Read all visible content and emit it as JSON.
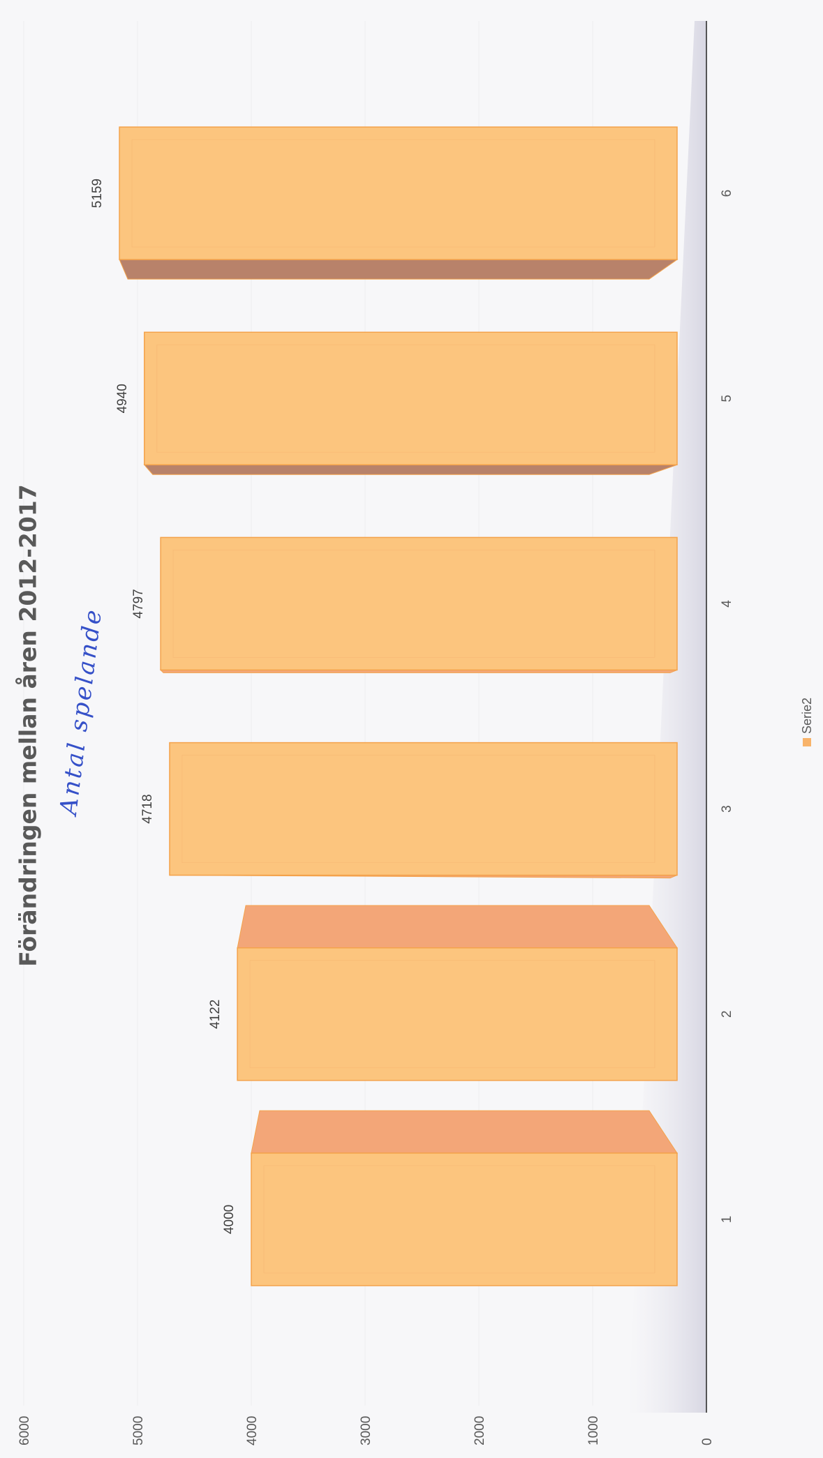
{
  "chart_data": {
    "type": "bar",
    "title": "Förändringen mellan åren 2012-2017",
    "annotation": "Antal spelande",
    "categories": [
      "1",
      "2",
      "3",
      "4",
      "5",
      "6"
    ],
    "series": [
      {
        "name": "Serie2",
        "values": [
          4000,
          4122,
          4718,
          4797,
          4940,
          5159
        ]
      }
    ],
    "data_labels": [
      "4000",
      "4122",
      "4718",
      "4797",
      "4940",
      "5159"
    ],
    "ylim": [
      0,
      6000
    ],
    "yticks": [
      "0",
      "1000",
      "2000",
      "3000",
      "4000",
      "5000",
      "6000"
    ],
    "grid": true,
    "legend_position": "bottom",
    "orientation": "rotated-90",
    "style": "3d-box",
    "colors": {
      "bar_front": "#fcc57e",
      "bar_edge": "#f4a24a",
      "bar_top": "#f3a678",
      "bar_shadow": "#b8826a",
      "legend_swatch": "#f8b36a",
      "axis": "#555555",
      "floor": "#d9d8e4",
      "annotation": "#3550c8",
      "title": "#595959"
    }
  }
}
